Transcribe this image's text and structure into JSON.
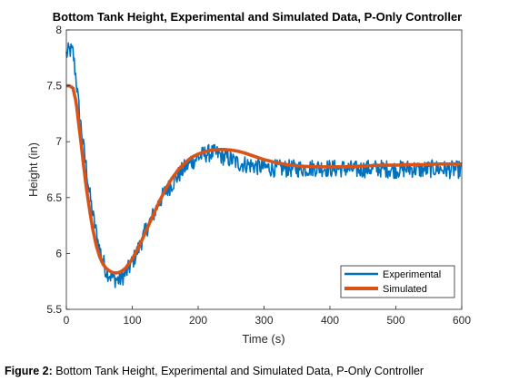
{
  "chart_data": {
    "type": "line",
    "title": "Bottom Tank Height, Experimental and Simulated Data, P-Only Controller",
    "xlabel": "Time (s)",
    "ylabel": "Height (in)",
    "xlim": [
      0,
      600
    ],
    "ylim": [
      5.5,
      8
    ],
    "xticks": [
      0,
      100,
      200,
      300,
      400,
      500,
      600
    ],
    "yticks": [
      5.5,
      6,
      6.5,
      7,
      7.5,
      8
    ],
    "xtick_labels": [
      "0",
      "100",
      "200",
      "300",
      "400",
      "500",
      "600"
    ],
    "ytick_labels": [
      "5.5",
      "6",
      "6.5",
      "7",
      "7.5",
      "8"
    ],
    "grid": false,
    "legend_position": "bottom-right",
    "series": [
      {
        "name": "Experimental",
        "color": "#0072BD",
        "line_width": "thin",
        "noise_amplitude": 0.08,
        "x": [
          0,
          5,
          10,
          15,
          20,
          25,
          30,
          35,
          40,
          50,
          60,
          70,
          80,
          90,
          100,
          110,
          120,
          130,
          140,
          150,
          160,
          170,
          180,
          190,
          200,
          210,
          220,
          230,
          240,
          250,
          260,
          280,
          300,
          320,
          340,
          360,
          380,
          400,
          420,
          440,
          460,
          480,
          500,
          520,
          540,
          560,
          580,
          600
        ],
        "y": [
          7.78,
          7.82,
          7.8,
          7.55,
          7.25,
          7.0,
          6.78,
          6.55,
          6.35,
          6.05,
          5.85,
          5.78,
          5.76,
          5.82,
          5.92,
          6.05,
          6.2,
          6.32,
          6.45,
          6.55,
          6.62,
          6.7,
          6.77,
          6.82,
          6.86,
          6.89,
          6.9,
          6.89,
          6.86,
          6.84,
          6.81,
          6.79,
          6.77,
          6.76,
          6.76,
          6.76,
          6.77,
          6.76,
          6.76,
          6.75,
          6.76,
          6.76,
          6.75,
          6.76,
          6.75,
          6.76,
          6.75,
          6.75
        ]
      },
      {
        "name": "Simulated",
        "color": "#D95319",
        "line_width": "thick",
        "x": [
          0,
          5,
          10,
          15,
          20,
          25,
          30,
          35,
          40,
          45,
          50,
          55,
          60,
          65,
          70,
          75,
          80,
          85,
          90,
          100,
          110,
          120,
          130,
          140,
          150,
          160,
          170,
          180,
          190,
          200,
          210,
          220,
          230,
          240,
          250,
          260,
          270,
          280,
          290,
          300,
          320,
          340,
          360,
          380,
          400,
          420,
          440,
          460,
          480,
          500,
          520,
          540,
          560,
          580,
          600
        ],
        "y": [
          7.5,
          7.5,
          7.48,
          7.35,
          7.1,
          6.85,
          6.6,
          6.4,
          6.22,
          6.08,
          5.98,
          5.91,
          5.87,
          5.845,
          5.83,
          5.825,
          5.83,
          5.845,
          5.87,
          5.95,
          6.06,
          6.19,
          6.32,
          6.45,
          6.57,
          6.67,
          6.75,
          6.81,
          6.86,
          6.89,
          6.91,
          6.925,
          6.93,
          6.93,
          6.925,
          6.915,
          6.9,
          6.88,
          6.86,
          6.84,
          6.81,
          6.79,
          6.78,
          6.775,
          6.775,
          6.775,
          6.78,
          6.785,
          6.79,
          6.79,
          6.795,
          6.795,
          6.8,
          6.8,
          6.8
        ]
      }
    ]
  },
  "caption": {
    "label": "Figure 2:",
    "text": " Bottom Tank Height, Experimental and Simulated Data, P-Only Controller"
  }
}
